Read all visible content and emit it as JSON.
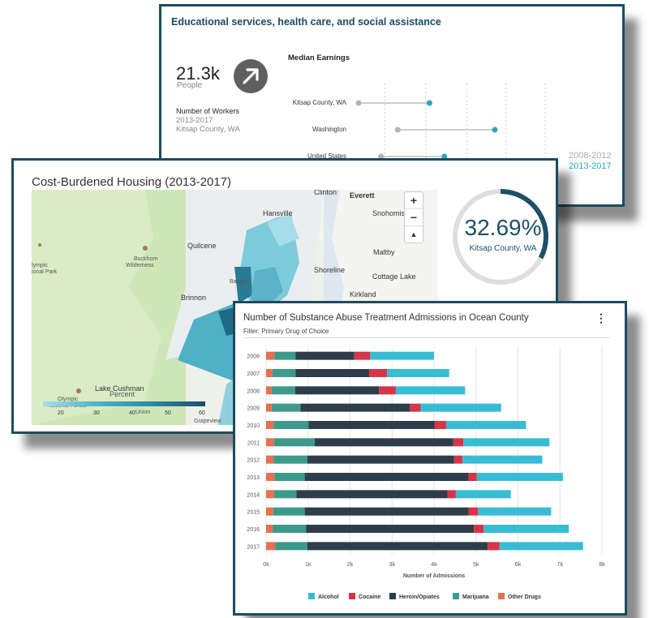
{
  "card1": {
    "title": "Educational services, health care, and social assistance",
    "workers_value": "21.3k",
    "workers_unit": "People",
    "workers_label": "Number of Workers",
    "workers_years": "2013-2017",
    "workers_location": "Kitsap County, WA",
    "trend_icon": "arrow-up-right-icon",
    "median_title": "Median Earnings",
    "rows": [
      {
        "label": "Kitsap County, WA",
        "old": 0.0,
        "new": 0.38
      },
      {
        "label": "Washington",
        "old": 0.21,
        "new": 0.73
      },
      {
        "label": "United States",
        "old": 0.12,
        "new": 0.46
      }
    ],
    "legend_old": "2008-2012",
    "legend_new": "2013-2017",
    "colors": {
      "old": "#b3b3b3",
      "new": "#2aa6c0"
    }
  },
  "card2": {
    "title": "Cost-Burdened Housing (2013-2017)",
    "donut_value": "32.69%",
    "donut_fraction": 0.3269,
    "donut_label": "Kitsap County, WA",
    "zoom_in": "+",
    "zoom_out": "−",
    "compass": "▲",
    "map_labels": [
      {
        "text": "Clinton"
      },
      {
        "text": "Everett"
      },
      {
        "text": "Hansville"
      },
      {
        "text": "Snohomish"
      },
      {
        "text": "Quilcene"
      },
      {
        "text": "Buckhorn"
      },
      {
        "text": "Wilderness"
      },
      {
        "text": "lympic"
      },
      {
        "text": "ional Park"
      },
      {
        "text": "Maltby"
      },
      {
        "text": "Shoreline"
      },
      {
        "text": "Bangor"
      },
      {
        "text": "Cottage Lake"
      },
      {
        "text": "Brinnon"
      },
      {
        "text": "Kirkland"
      },
      {
        "text": "Lake Cushman"
      },
      {
        "text": "Percent"
      },
      {
        "text": "Union"
      },
      {
        "text": "Olympic"
      },
      {
        "text": "National Forest"
      },
      {
        "text": "Grapeview"
      }
    ],
    "legend_title": "Percent",
    "legend_ticks": [
      "20",
      "30",
      "40",
      "50",
      "60"
    ]
  },
  "card3": {
    "title": "Number of Substance Abuse Treatment Admissions in Ocean County",
    "filter": "Filter: Primary Drug of Choice",
    "menu": "⋮",
    "chart_data": {
      "type": "bar",
      "orientation": "horizontal",
      "stacked": true,
      "categories": [
        "2006",
        "2007",
        "2008",
        "2009",
        "2010",
        "2011",
        "2012",
        "2013",
        "2014",
        "2015",
        "2016",
        "2017"
      ],
      "xlabel": "Number of Admissions",
      "xlim": [
        0,
        8000
      ],
      "xticks": [
        "0k",
        "1k",
        "2k",
        "3k",
        "4k",
        "5k",
        "6k",
        "7k",
        "8k"
      ],
      "series": [
        {
          "name": "Other Drugs",
          "color": "#e8704f",
          "values": [
            200,
            150,
            130,
            130,
            180,
            190,
            180,
            200,
            190,
            170,
            150,
            220
          ]
        },
        {
          "name": "Marijuana",
          "color": "#3d9a8a",
          "values": [
            500,
            550,
            560,
            690,
            830,
            970,
            800,
            720,
            530,
            750,
            800,
            760
          ]
        },
        {
          "name": "Heroin/Opiates",
          "color": "#2d3e4a",
          "values": [
            1400,
            1760,
            2000,
            2600,
            3000,
            3300,
            3500,
            3900,
            3600,
            3900,
            4000,
            4300
          ]
        },
        {
          "name": "Cocaine",
          "color": "#d63447",
          "values": [
            380,
            420,
            400,
            260,
            280,
            240,
            200,
            200,
            200,
            230,
            230,
            280
          ]
        },
        {
          "name": "Alcohol",
          "color": "#38bcd4",
          "values": [
            1520,
            1480,
            1650,
            1920,
            1900,
            2050,
            1900,
            2050,
            1310,
            1740,
            2030,
            1990
          ]
        }
      ],
      "legend": [
        "Alcohol",
        "Cocaine",
        "Heroin/Opiates",
        "Marijuana",
        "Other Drugs"
      ],
      "legend_position": "bottom"
    }
  }
}
